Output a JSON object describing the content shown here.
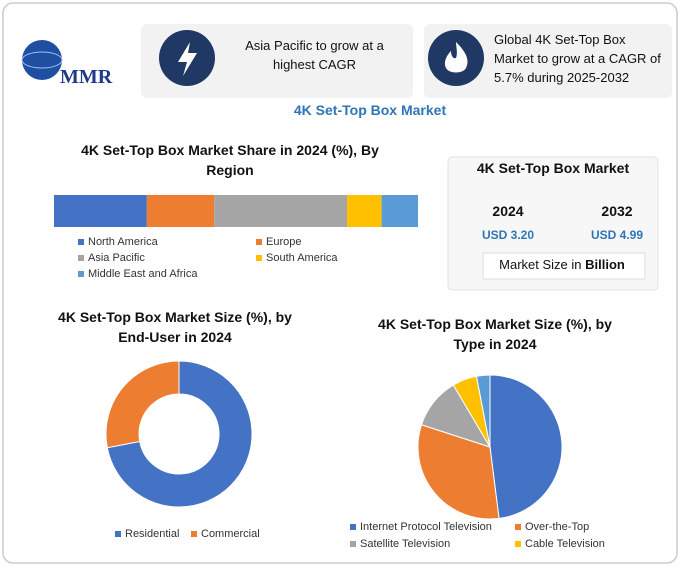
{
  "header": {
    "logo": "MMR",
    "highlight_1": "Asia Pacific to grow at a highest CAGR",
    "highlight_2": "Global 4K Set-Top Box Market to grow at a CAGR of 5.7% during 2025-2032",
    "title": "4K Set-Top Box Market"
  },
  "market_size": {
    "title": "4K Set-Top Box Market",
    "years": [
      "2024",
      "2032"
    ],
    "values": [
      "USD 3.20",
      "USD 4.99"
    ],
    "note_prefix": "Market Size in",
    "note_unit": "Billion"
  },
  "chart_data": [
    {
      "type": "stacked-bar",
      "title": "4K Set-Top Box Market Share in 2024 (%), By Region",
      "categories": [
        "North America",
        "Europe",
        "Asia Pacific",
        "South America",
        "Middle East and Africa"
      ],
      "values": [
        25.5,
        18.5,
        36.5,
        9.5,
        10
      ],
      "colors": [
        "#4472c4",
        "#ed7d31",
        "#a5a5a5",
        "#ffc000",
        "#5b9bd5"
      ]
    },
    {
      "type": "donut",
      "title": "4K Set-Top Box Market Size (%), by End-User in 2024",
      "categories": [
        "Residential",
        "Commercial"
      ],
      "values": [
        72,
        28
      ],
      "colors": [
        "#4472c4",
        "#ed7d31"
      ]
    },
    {
      "type": "pie",
      "title": "4K Set-Top Box Market Size (%), by Type in 2024",
      "categories": [
        "Internet Protocol Television",
        "Over-the-Top",
        "Satellite Television",
        "Cable Television",
        null
      ],
      "values": [
        48,
        32,
        11.5,
        5.5,
        3
      ],
      "colors": [
        "#4472c4",
        "#ed7d31",
        "#a5a5a5",
        "#ffc000",
        "#5b9bd5"
      ]
    }
  ]
}
